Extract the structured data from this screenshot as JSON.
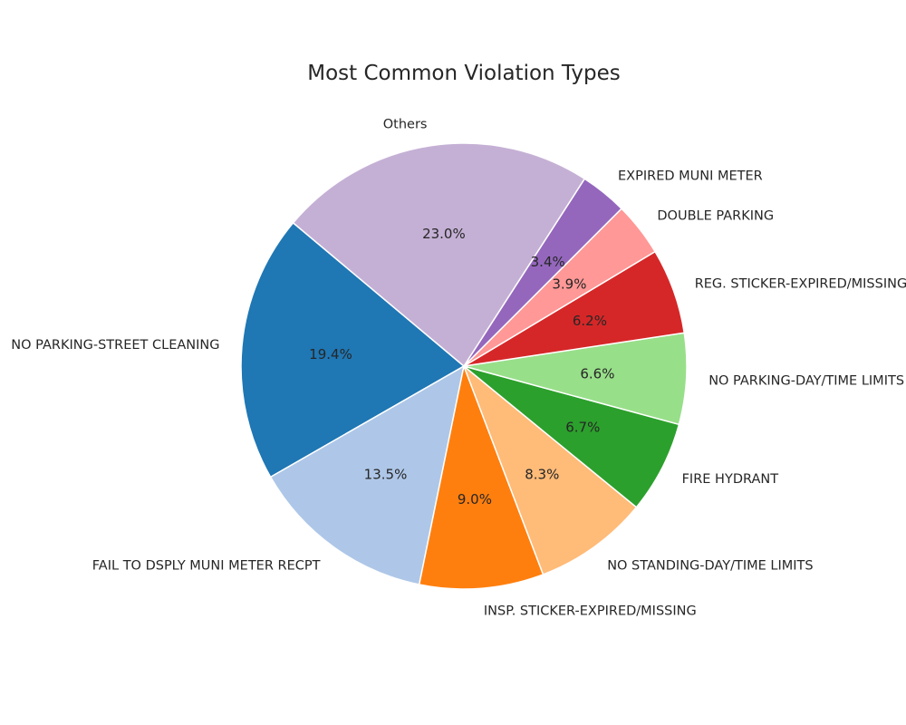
{
  "chart_data": {
    "type": "pie",
    "title": "Most Common Violation Types",
    "start_angle_deg": 140,
    "direction": "counterclockwise",
    "slices": [
      {
        "label": "NO PARKING-STREET CLEANING",
        "value": 19.4,
        "pct_label": "19.4%",
        "color": "#1f77b4"
      },
      {
        "label": "FAIL TO DSPLY MUNI METER RECPT",
        "value": 13.5,
        "pct_label": "13.5%",
        "color": "#aec7e8"
      },
      {
        "label": "INSP. STICKER-EXPIRED/MISSING",
        "value": 9.0,
        "pct_label": "9.0%",
        "color": "#ff7f0e"
      },
      {
        "label": "NO STANDING-DAY/TIME LIMITS",
        "value": 8.3,
        "pct_label": "8.3%",
        "color": "#ffbb78"
      },
      {
        "label": "FIRE HYDRANT",
        "value": 6.7,
        "pct_label": "6.7%",
        "color": "#2ca02c"
      },
      {
        "label": "NO PARKING-DAY/TIME LIMITS",
        "value": 6.6,
        "pct_label": "6.6%",
        "color": "#98df8a"
      },
      {
        "label": "REG. STICKER-EXPIRED/MISSING",
        "value": 6.2,
        "pct_label": "6.2%",
        "color": "#d62728"
      },
      {
        "label": "DOUBLE PARKING",
        "value": 3.9,
        "pct_label": "3.9%",
        "color": "#ff9896"
      },
      {
        "label": "EXPIRED MUNI METER",
        "value": 3.4,
        "pct_label": "3.4%",
        "color": "#9467bd"
      },
      {
        "label": "Others",
        "value": 23.0,
        "pct_label": "23.0%",
        "color": "#c5b0d5"
      }
    ]
  }
}
